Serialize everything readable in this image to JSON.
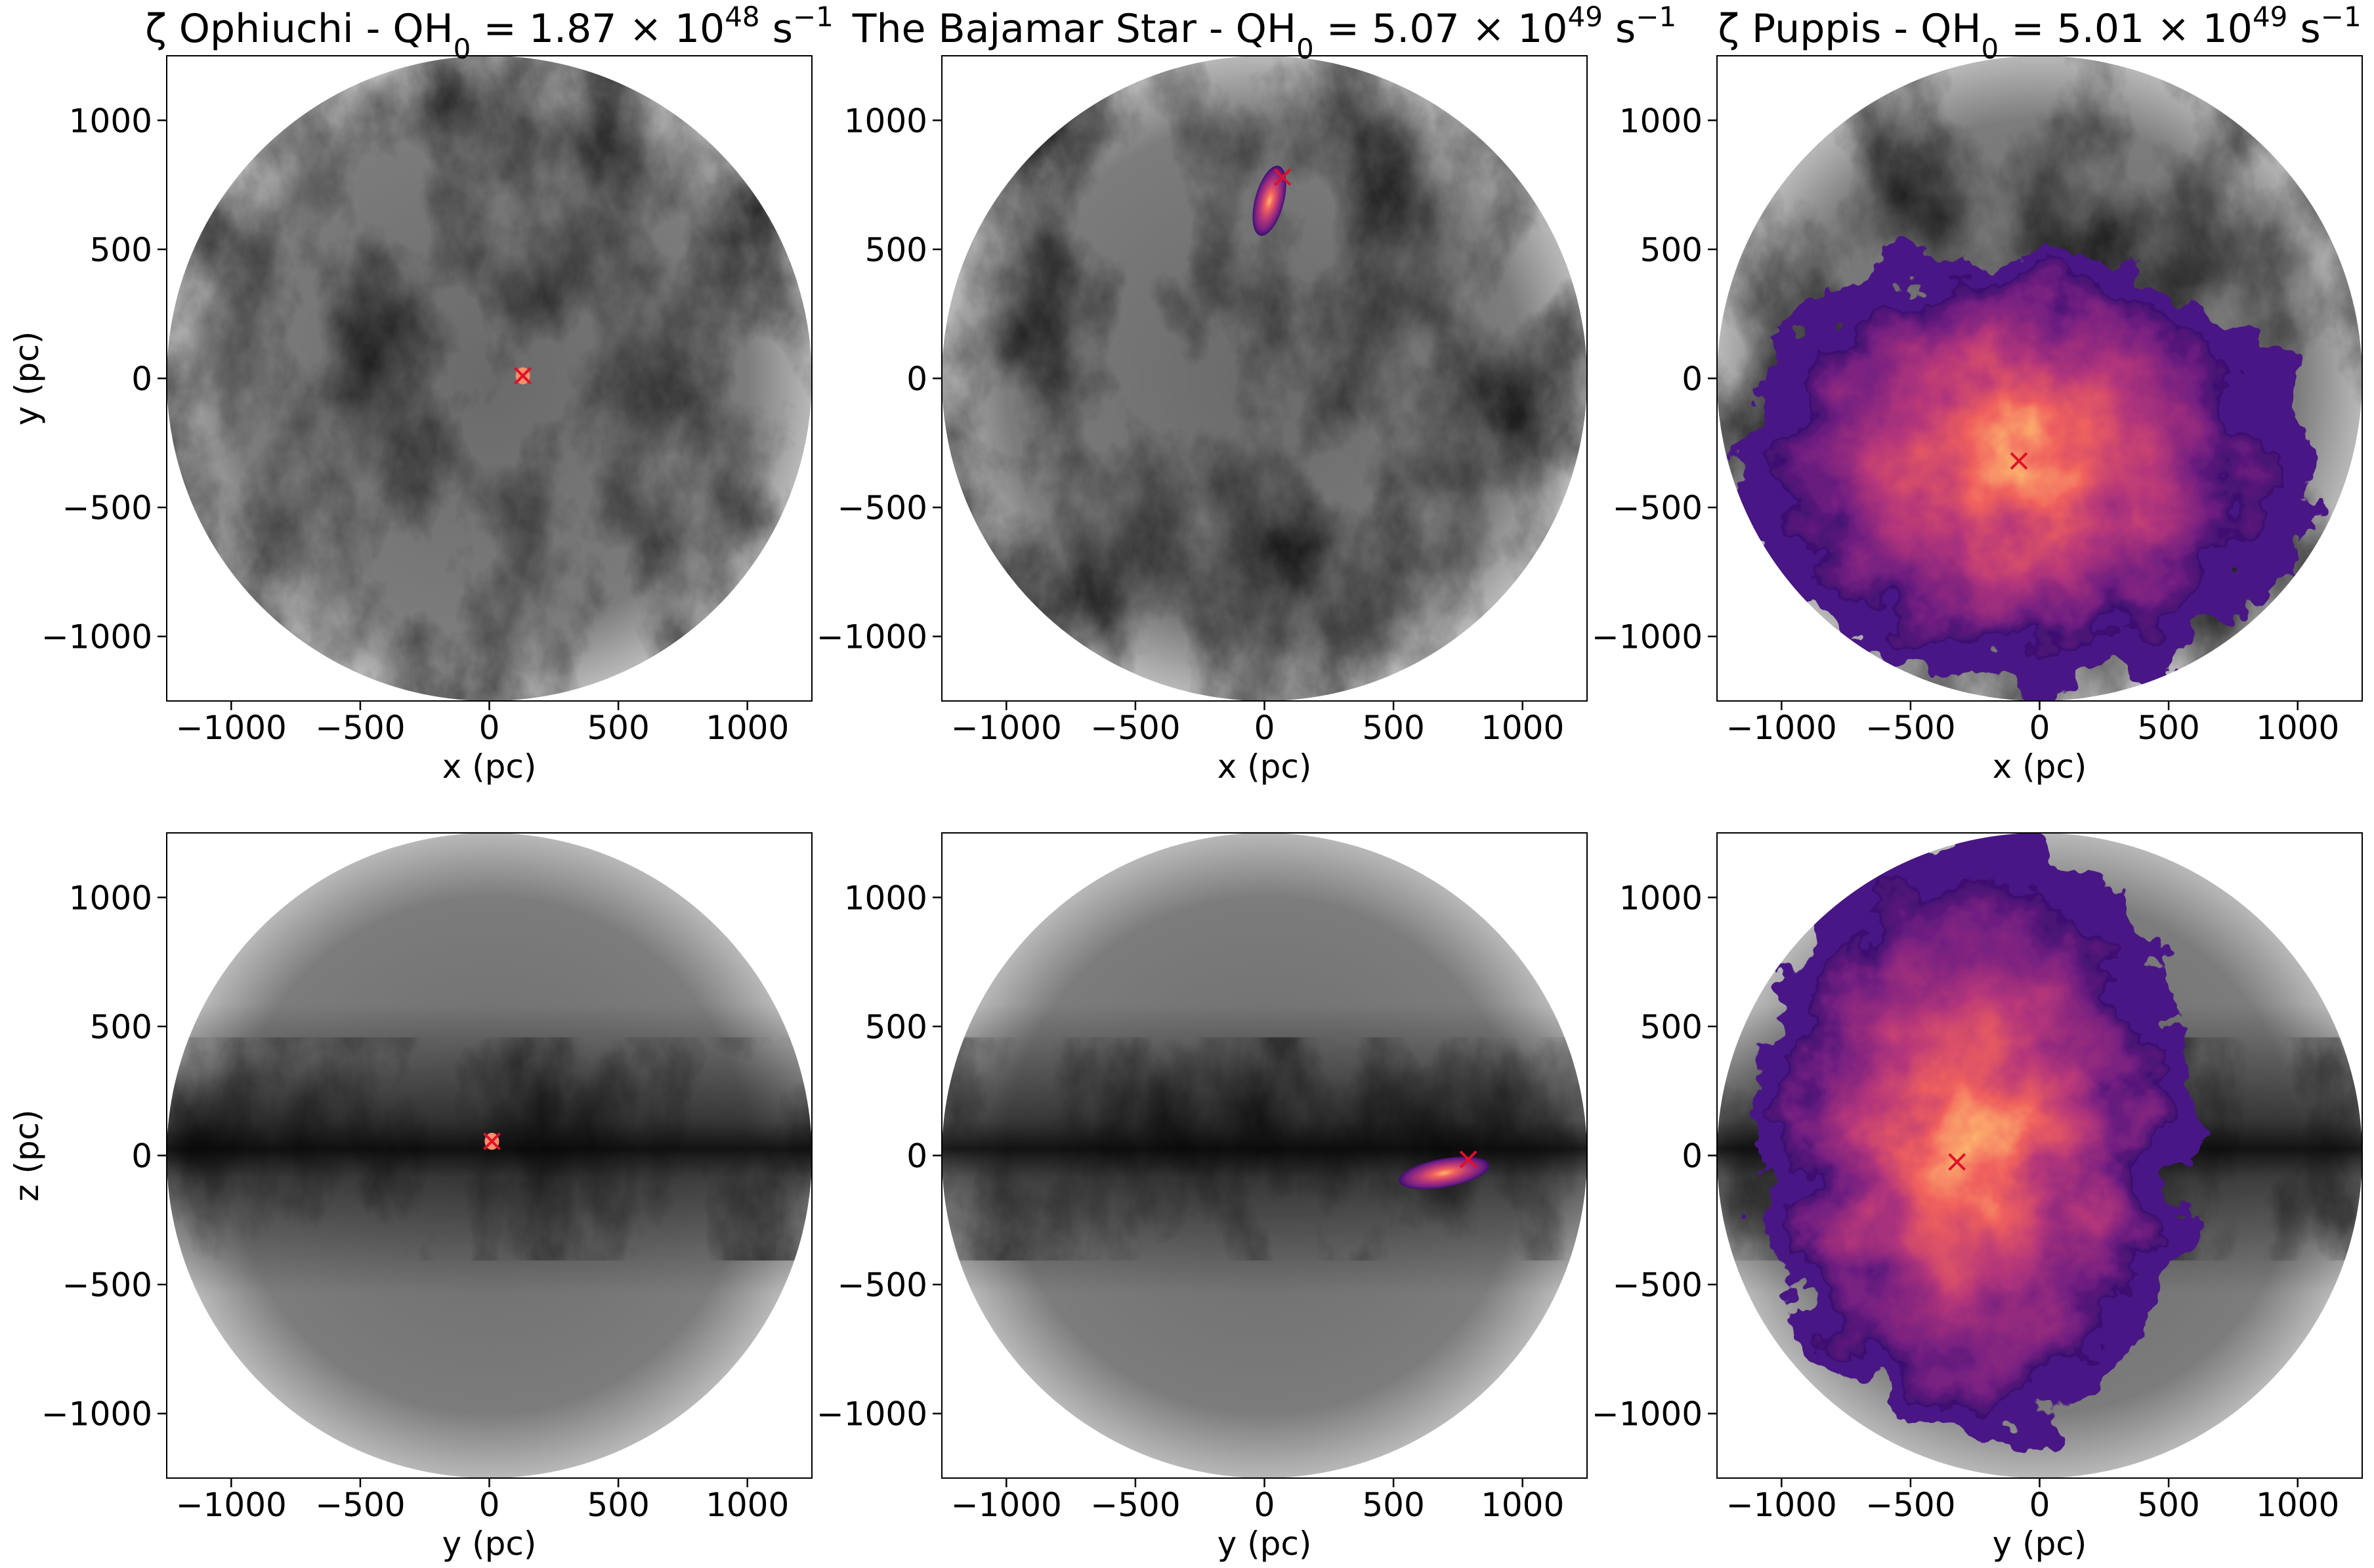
{
  "chart_data": [
    {
      "type": "image",
      "title_parts": [
        {
          "text": "ζ Ophiuchi - QH"
        },
        {
          "text": "0",
          "shift": "sub"
        },
        {
          "text": " = 1.87 × 10"
        },
        {
          "text": "48",
          "shift": "super"
        },
        {
          "text": " s"
        },
        {
          "text": "−1",
          "shift": "super"
        }
      ],
      "xlabel": "x (pc)",
      "ylabel": "y (pc)",
      "xlim": [
        -1250,
        1250
      ],
      "ylim": [
        -1250,
        1250
      ],
      "xticks": [
        {
          "value": -1000,
          "label": "−1000"
        },
        {
          "value": -500,
          "label": "−500"
        },
        0,
        500,
        1000
      ],
      "yticks": [
        {
          "value": -1000,
          "label": "−1000"
        },
        {
          "value": -500,
          "label": "−500"
        },
        0,
        500,
        1000
      ],
      "marker": {
        "x": 130,
        "y": 10
      }
    },
    {
      "type": "image",
      "title_parts": [
        {
          "text": "The Bajamar Star - QH"
        },
        {
          "text": "0",
          "shift": "sub"
        },
        {
          "text": " = 5.07 × 10"
        },
        {
          "text": "49",
          "shift": "super"
        },
        {
          "text": " s"
        },
        {
          "text": "−1",
          "shift": "super"
        }
      ],
      "xlabel": "x (pc)",
      "xlim": [
        -1250,
        1250
      ],
      "ylim": [
        -1250,
        1250
      ],
      "xticks": [
        {
          "value": -1000,
          "label": "−1000"
        },
        {
          "value": -500,
          "label": "−500"
        },
        0,
        500,
        1000
      ],
      "yticks": [
        {
          "value": -1000,
          "label": "−1000"
        },
        {
          "value": -500,
          "label": "−500"
        },
        0,
        500,
        1000
      ],
      "marker": {
        "x": 70,
        "y": 780
      }
    },
    {
      "type": "image",
      "title_parts": [
        {
          "text": "ζ Puppis - QH"
        },
        {
          "text": "0",
          "shift": "sub"
        },
        {
          "text": " = 5.01 × 10"
        },
        {
          "text": "49",
          "shift": "super"
        },
        {
          "text": " s"
        },
        {
          "text": "−1",
          "shift": "super"
        }
      ],
      "xlabel": "x (pc)",
      "xlim": [
        -1250,
        1250
      ],
      "ylim": [
        -1250,
        1250
      ],
      "xticks": [
        {
          "value": -1000,
          "label": "−1000"
        },
        {
          "value": -500,
          "label": "−500"
        },
        0,
        500,
        1000
      ],
      "yticks": [
        {
          "value": -1000,
          "label": "−1000"
        },
        {
          "value": -500,
          "label": "−500"
        },
        0,
        500,
        1000
      ],
      "marker": {
        "x": -80,
        "y": -320
      }
    },
    {
      "type": "image",
      "xlabel": "y (pc)",
      "ylabel": "z (pc)",
      "xlim": [
        -1250,
        1250
      ],
      "ylim": [
        -1250,
        1250
      ],
      "xticks": [
        {
          "value": -1000,
          "label": "−1000"
        },
        {
          "value": -500,
          "label": "−500"
        },
        0,
        500,
        1000
      ],
      "yticks": [
        {
          "value": -1000,
          "label": "−1000"
        },
        {
          "value": -500,
          "label": "−500"
        },
        0,
        500,
        1000
      ],
      "marker": {
        "x": 10,
        "y": 55
      }
    },
    {
      "type": "image",
      "xlabel": "y (pc)",
      "xlim": [
        -1250,
        1250
      ],
      "ylim": [
        -1250,
        1250
      ],
      "xticks": [
        {
          "value": -1000,
          "label": "−1000"
        },
        {
          "value": -500,
          "label": "−500"
        },
        0,
        500,
        1000
      ],
      "yticks": [
        {
          "value": -1000,
          "label": "−1000"
        },
        {
          "value": -500,
          "label": "−500"
        },
        0,
        500,
        1000
      ],
      "marker": {
        "x": 790,
        "y": -15
      }
    },
    {
      "type": "image",
      "xlabel": "y (pc)",
      "xlim": [
        -1250,
        1250
      ],
      "ylim": [
        -1250,
        1250
      ],
      "xticks": [
        {
          "value": -1000,
          "label": "−1000"
        },
        {
          "value": -500,
          "label": "−500"
        },
        0,
        500,
        1000
      ],
      "yticks": [
        {
          "value": -1000,
          "label": "−1000"
        },
        {
          "value": -500,
          "label": "−500"
        },
        0,
        500,
        1000
      ],
      "marker": {
        "x": -320,
        "y": -25
      }
    }
  ]
}
